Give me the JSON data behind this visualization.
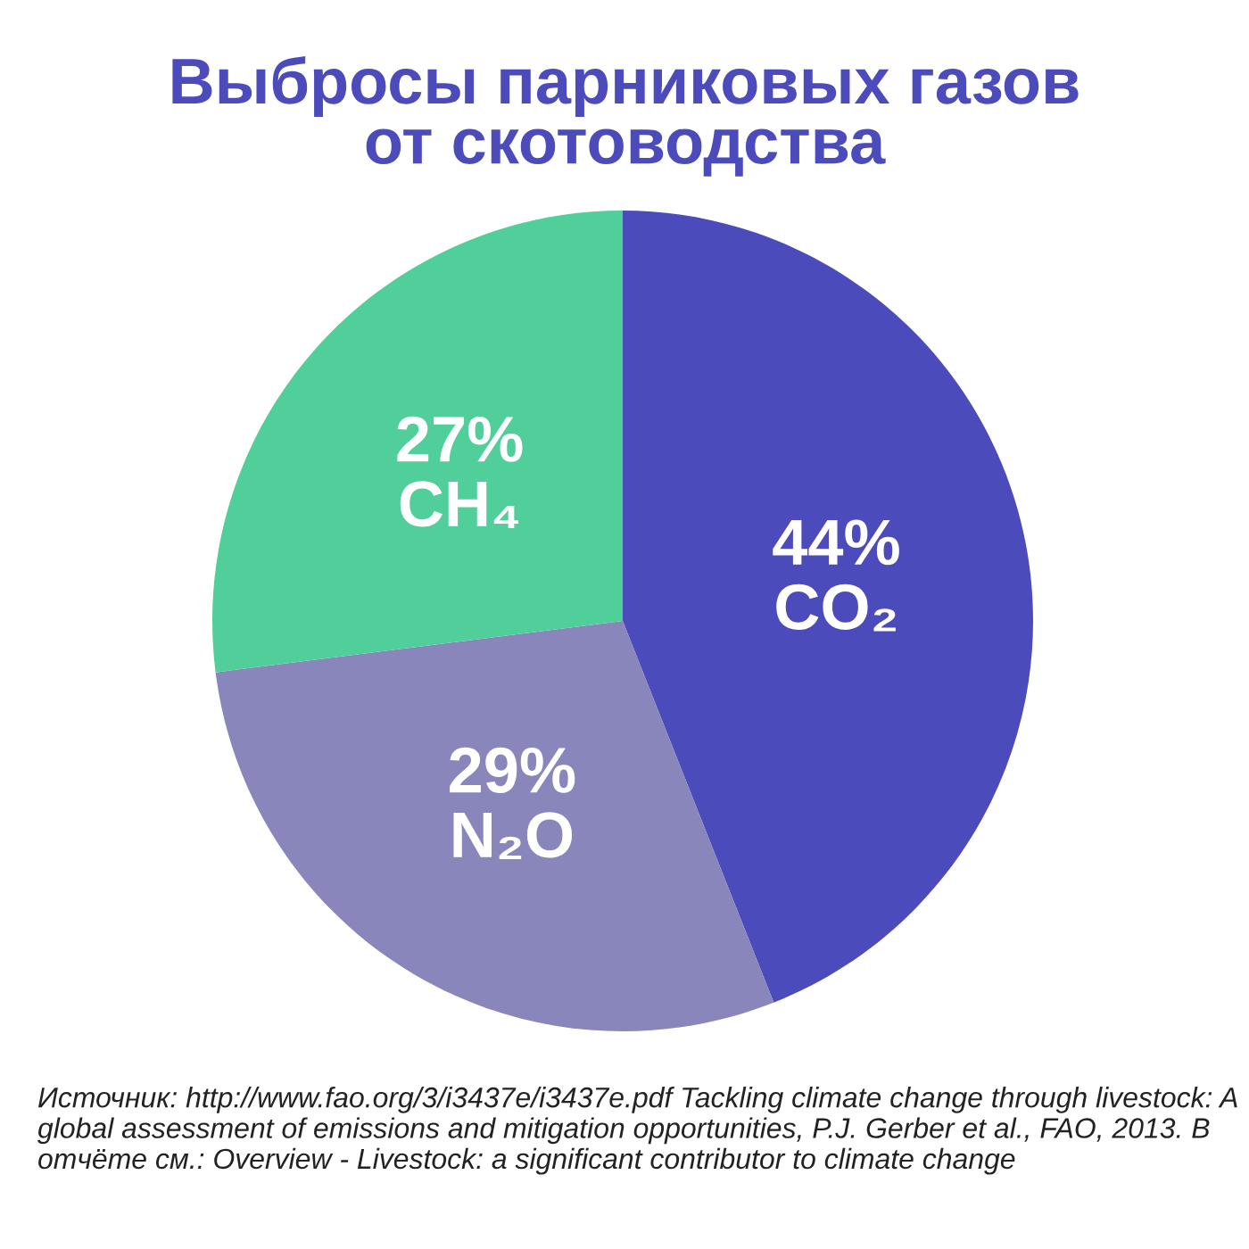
{
  "chart_data": {
    "type": "pie",
    "title": "Выбросы парниковых газов\nот скотоводства",
    "categories": [
      "CO₂",
      "N₂O",
      "CH₄"
    ],
    "values": [
      44,
      29,
      27
    ],
    "value_labels": [
      "44%",
      "29%",
      "27%"
    ],
    "colors": [
      "#4b4bbb",
      "#8886bb",
      "#50cf9a"
    ],
    "legend": false,
    "annotations": [
      "Источник: http://www.fao.org/3/i3437e/i3437e.pdf Tackling climate change through livestock: A global assessment of emissions and mitigation opportunities, P.J. Gerber et al., FAO, 2013. В отчёте см.: Overview - Livestock: a significant contributor to climate change"
    ]
  }
}
